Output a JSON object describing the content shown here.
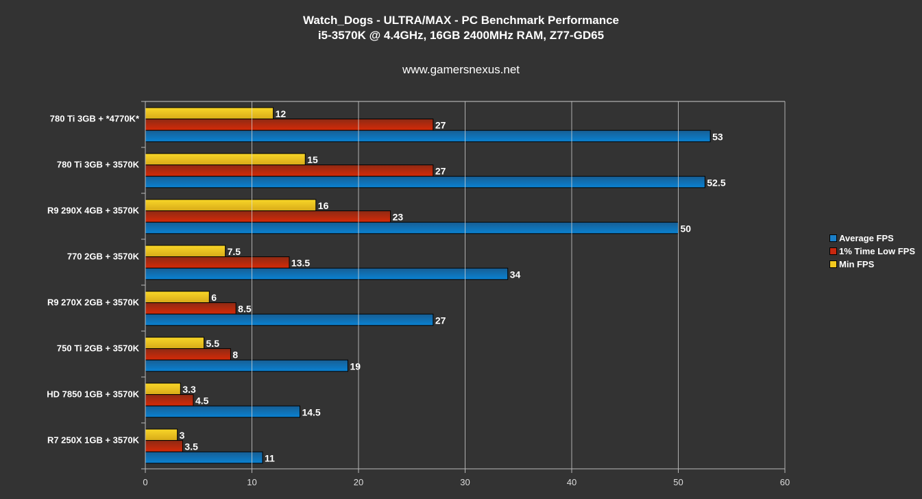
{
  "chart_data": {
    "type": "bar",
    "orientation": "horizontal",
    "title": "Watch_Dogs - ULTRA/MAX - PC Benchmark Performance",
    "subtitle": "i5-3570K @ 4.4GHz, 16GB 2400MHz RAM, Z77-GD65",
    "source": "www.gamersnexus.net",
    "categories": [
      "780 Ti 3GB + *4770K*",
      "780 Ti 3GB + 3570K",
      "R9 290X 4GB + 3570K",
      "770 2GB + 3570K",
      "R9 270X 2GB + 3570K",
      "750 Ti 2GB + 3570K",
      "HD 7850 1GB + 3570K",
      "R7 250X 1GB + 3570K"
    ],
    "series": [
      {
        "name": "Average FPS",
        "color": "#1a7fc8",
        "values": [
          53,
          52.5,
          50,
          34,
          27,
          19,
          14.5,
          11
        ]
      },
      {
        "name": "1% Time Low FPS",
        "color": "#c8280f",
        "values": [
          27,
          27,
          23,
          13.5,
          8.5,
          8,
          4.5,
          3.5
        ]
      },
      {
        "name": "Min FPS",
        "color": "#f2c81e",
        "values": [
          12,
          15,
          16,
          7.5,
          6,
          5.5,
          3.3,
          3
        ]
      }
    ],
    "xlim": [
      0,
      60
    ],
    "xticks": [
      0,
      10,
      20,
      30,
      40,
      50,
      60
    ],
    "grid": true,
    "legend_position": "right"
  }
}
